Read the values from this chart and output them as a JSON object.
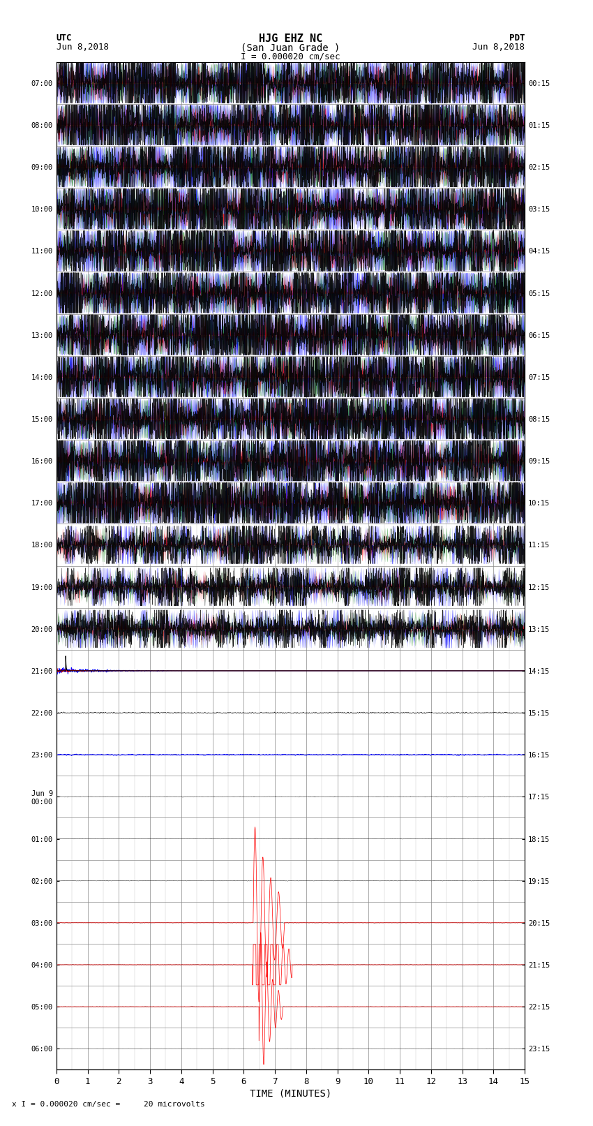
{
  "title_line1": "HJG EHZ NC",
  "title_line2": "(San Juan Grade )",
  "title_line3": "I = 0.000020 cm/sec",
  "left_label_line1": "UTC",
  "left_label_line2": "Jun 8,2018",
  "right_label_line1": "PDT",
  "right_label_line2": "Jun 8,2018",
  "bottom_label": "TIME (MINUTES)",
  "bottom_note": "x I = 0.000020 cm/sec =     20 microvolts",
  "xlabel_ticks": [
    0,
    1,
    2,
    3,
    4,
    5,
    6,
    7,
    8,
    9,
    10,
    11,
    12,
    13,
    14,
    15
  ],
  "left_yticks": [
    "07:00",
    "08:00",
    "09:00",
    "10:00",
    "11:00",
    "12:00",
    "13:00",
    "14:00",
    "15:00",
    "16:00",
    "17:00",
    "18:00",
    "19:00",
    "20:00",
    "21:00",
    "22:00",
    "23:00",
    "Jun 9\n00:00",
    "01:00",
    "02:00",
    "03:00",
    "04:00",
    "05:00",
    "06:00"
  ],
  "right_yticks": [
    "00:15",
    "01:15",
    "02:15",
    "03:15",
    "04:15",
    "05:15",
    "06:15",
    "07:15",
    "08:15",
    "09:15",
    "10:15",
    "11:15",
    "12:15",
    "13:15",
    "14:15",
    "15:15",
    "16:15",
    "17:15",
    "18:15",
    "19:15",
    "20:15",
    "21:15",
    "22:15",
    "23:15"
  ],
  "num_traces": 24,
  "x_min": 0,
  "x_max": 15,
  "background_color": "white",
  "grid_color": "#888888"
}
